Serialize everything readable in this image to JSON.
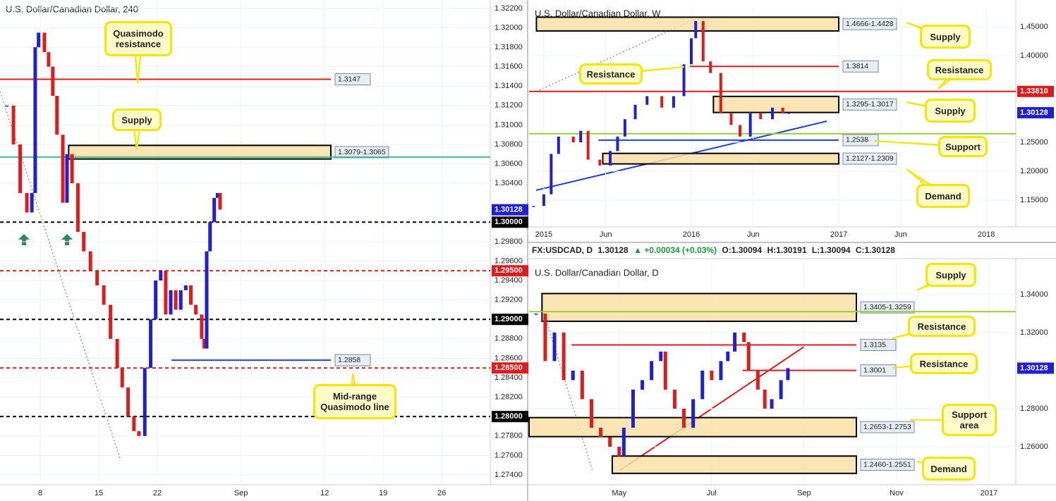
{
  "chart_data": [
    {
      "type": "line",
      "title": "U.S. Dollar/Canadian Dollar, 240",
      "x": [
        4.0,
        4.8,
        5.6,
        6.4,
        7.0,
        7.4,
        7.8,
        8.5,
        9.0,
        9.5,
        10.0,
        10.7,
        11.2,
        11.8,
        12.5,
        13.2,
        14.0,
        14.8,
        15.6,
        16.4,
        17.2,
        17.8,
        18.5,
        19.2,
        19.8,
        20.5,
        21.2,
        21.8,
        22.4,
        23.0,
        23.6,
        24.2,
        24.8,
        25.4,
        26.0,
        26.6,
        27.3,
        27.6,
        27.9,
        28.3,
        28.8,
        29.2,
        29.5
      ],
      "values": [
        1.312,
        1.308,
        1.303,
        1.301,
        1.303,
        1.318,
        1.3195,
        1.3175,
        1.316,
        1.313,
        1.309,
        1.302,
        1.307,
        1.304,
        1.299,
        1.297,
        1.295,
        1.2935,
        1.2915,
        1.288,
        1.285,
        1.283,
        1.28,
        1.2785,
        1.278,
        1.285,
        1.29,
        1.294,
        1.295,
        1.2905,
        1.293,
        1.291,
        1.293,
        1.2935,
        1.2915,
        1.2905,
        1.288,
        1.287,
        1.297,
        1.3,
        1.3025,
        1.303,
        1.3013
      ],
      "up_color": "#1f1fd6",
      "down_color": "#e01b1b",
      "grid": true,
      "xlim": [
        3.19,
        61.8
      ],
      "ylim": [
        1.27298,
        1.32286
      ],
      "xticks": [
        8,
        15,
        22,
        {
          "value": 32,
          "label": "Sep"
        },
        {
          "value": 42,
          "label": "12"
        },
        {
          "value": 49,
          "label": "19"
        },
        {
          "value": 56,
          "label": "26"
        }
      ],
      "yticks": [
        {
          "value": 1.322,
          "label": "1.32200"
        },
        {
          "value": 1.32,
          "label": "1.32000"
        },
        {
          "value": 1.318,
          "label": "1.31800"
        },
        {
          "value": 1.316,
          "label": "1.31600"
        },
        {
          "value": 1.314,
          "label": "1.31400"
        },
        {
          "value": 1.312,
          "label": "1.31200"
        },
        {
          "value": 1.31,
          "label": "1.31000"
        },
        {
          "value": 1.308,
          "label": "1.30800"
        },
        {
          "value": 1.306,
          "label": "1.30600"
        },
        {
          "value": 1.304,
          "label": "1.30400"
        },
        {
          "value": 1.298,
          "label": "1.29800"
        },
        {
          "value": 1.296,
          "label": "1.29600"
        },
        {
          "value": 1.294,
          "label": "1.29400"
        },
        {
          "value": 1.292,
          "label": "1.29200"
        },
        {
          "value": 1.288,
          "label": "1.28800"
        },
        {
          "value": 1.286,
          "label": "1.28600"
        },
        {
          "value": 1.284,
          "label": "1.28400"
        },
        {
          "value": 1.282,
          "label": "1.28200"
        },
        {
          "value": 1.278,
          "label": "1.27800"
        },
        {
          "value": 1.276,
          "label": "1.27600"
        },
        {
          "value": 1.274,
          "label": "1.27400"
        }
      ],
      "last_price": {
        "value": 1.30128,
        "label": "1.30128",
        "color": "#1f1fd6"
      },
      "lines": [
        {
          "value": 1.3,
          "label": "1.30000",
          "color": "#000000",
          "style": "dashed",
          "tag": "axis"
        },
        {
          "value": 1.295,
          "label": "1.29500",
          "color": "#e01b1b",
          "style": "dashed",
          "tag": "axis"
        },
        {
          "value": 1.29,
          "label": "1.29000",
          "color": "#000000",
          "style": "dashed",
          "tag": "axis"
        },
        {
          "value": 1.285,
          "label": "1.28500",
          "color": "#e01b1b",
          "style": "dashed",
          "tag": "axis"
        },
        {
          "value": 1.28,
          "label": "1.28000",
          "color": "#000000",
          "style": "dashed",
          "tag": "axis"
        },
        {
          "value": 1.3067,
          "color": "#3cc08f",
          "style": "solid"
        },
        {
          "value": 1.3147,
          "label": "1.3147",
          "color": "#e01b1b",
          "style": "solid",
          "tag": "box"
        },
        {
          "value": 1.2858,
          "label": "1.2858",
          "color": "#1f3fd6",
          "style": "solid",
          "tag": "box",
          "from": 23.7
        }
      ],
      "zones": [
        {
          "range": [
            1.3065,
            1.3079
          ],
          "label": "1.3079-1.3065",
          "from": 11.4
        }
      ],
      "callouts": [
        "Quasimodo resistance",
        "Supply",
        "Mid-range Quasimodo line"
      ]
    },
    {
      "type": "line",
      "title": "U.S. Dollar/Canadian Dollar, W",
      "x": [
        2014.93,
        2015.0,
        2015.05,
        2015.1,
        2015.2,
        2015.25,
        2015.3,
        2015.38,
        2015.45,
        2015.5,
        2015.55,
        2015.62,
        2015.7,
        2015.8,
        2015.88,
        2015.95,
        2016.0,
        2016.03,
        2016.08,
        2016.13,
        2016.2,
        2016.27,
        2016.33,
        2016.4,
        2016.47,
        2016.55,
        2016.62,
        2016.66
      ],
      "values": [
        1.14,
        1.16,
        1.23,
        1.26,
        1.25,
        1.27,
        1.22,
        1.21,
        1.235,
        1.26,
        1.29,
        1.315,
        1.33,
        1.31,
        1.33,
        1.385,
        1.43,
        1.46,
        1.39,
        1.37,
        1.3,
        1.28,
        1.26,
        1.3,
        1.29,
        1.31,
        1.3,
        1.3013
      ],
      "up_color": "#1f1fd6",
      "down_color": "#e01b1b",
      "grid": true,
      "xlim": [
        2014.9,
        2018.2
      ],
      "ylim": [
        1.1037,
        1.4817
      ],
      "xticks": [
        2015,
        {
          "value": 2015.42,
          "label": "Jun"
        },
        2016,
        {
          "value": 2016.42,
          "label": "Jun"
        },
        2017,
        {
          "value": 2017.42,
          "label": "Jun"
        },
        2018
      ],
      "yticks": [
        {
          "value": 1.45,
          "label": "1.45000"
        },
        {
          "value": 1.4,
          "label": "1.40000"
        },
        {
          "value": 1.25,
          "label": "1.25000"
        },
        {
          "value": 1.2,
          "label": "1.20000"
        },
        {
          "value": 1.15,
          "label": "1.15000"
        }
      ],
      "last_price": {
        "value": 1.30128,
        "label": "1.30128",
        "color": "#1f1fd6"
      },
      "lines": [
        {
          "value": 1.3381,
          "label": "1.33810",
          "color": "#e01b1b",
          "style": "solid",
          "tag": "axis"
        },
        {
          "value": 1.265,
          "color": "#9acd32",
          "style": "solid"
        },
        {
          "value": 1.3814,
          "label": "1.3814",
          "color": "#e01b1b",
          "style": "solid",
          "tag": "box",
          "from": 2015.99
        },
        {
          "value": 1.2538,
          "label": "1.2538",
          "color": "#1f3fd6",
          "style": "solid",
          "tag": "box",
          "from": 2015.37
        }
      ],
      "zones": [
        {
          "range": [
            1.4428,
            1.4666
          ],
          "label": "1.4666-1.4428",
          "from": 2014.95
        },
        {
          "range": [
            1.3017,
            1.3295
          ],
          "label": "1.3295-1.3017",
          "from": 2016.15
        },
        {
          "range": [
            1.2127,
            1.2309
          ],
          "label": "1.2127-1.2309",
          "from": 2015.4
        }
      ],
      "callouts": [
        "Supply",
        "Resistance",
        "Resistance",
        "Supply",
        "Support",
        "Demand"
      ]
    },
    {
      "type": "line",
      "title": "U.S. Dollar/Canadian Dollar, D",
      "header": {
        "symbol": "FX:USDCAD, D",
        "price": "1.30128",
        "change": "▲ +0.00034 (+0.03%)",
        "open": "O:1.30094",
        "high": "H:1.30191",
        "low": "L:1.30094",
        "close": "C:1.30128"
      },
      "x": [
        3.2,
        3.4,
        3.6,
        3.8,
        4.0,
        4.2,
        4.4,
        4.6,
        4.8,
        5.0,
        5.1,
        5.3,
        5.5,
        5.7,
        5.9,
        6.0,
        6.2,
        6.4,
        6.6,
        6.8,
        7.0,
        7.2,
        7.35,
        7.5,
        7.7,
        7.8,
        8.0,
        8.15,
        8.3,
        8.5,
        8.65
      ],
      "values": [
        1.33,
        1.305,
        1.32,
        1.295,
        1.3,
        1.285,
        1.27,
        1.265,
        1.26,
        1.255,
        1.27,
        1.29,
        1.295,
        1.305,
        1.31,
        1.29,
        1.28,
        1.27,
        1.285,
        1.3,
        1.295,
        1.305,
        1.31,
        1.32,
        1.315,
        1.3,
        1.29,
        1.28,
        1.285,
        1.295,
        1.3013
      ],
      "up_color": "#1f1fd6",
      "down_color": "#e01b1b",
      "grid": true,
      "xlim": [
        3.05,
        13.58
      ],
      "ylim": [
        1.24,
        1.357
      ],
      "xticks": [
        {
          "value": 5,
          "label": "May"
        },
        {
          "value": 7,
          "label": "Jul"
        },
        {
          "value": 9,
          "label": "Sep"
        },
        {
          "value": 11,
          "label": "Nov"
        },
        {
          "value": 13,
          "label": "2017"
        }
      ],
      "yticks": [
        {
          "value": 1.34,
          "label": "1.34000"
        },
        {
          "value": 1.32,
          "label": "1.32000"
        },
        {
          "value": 1.28,
          "label": "1.28000"
        },
        {
          "value": 1.26,
          "label": "1.26000"
        }
      ],
      "last_price": {
        "value": 1.30128,
        "label": "1.30128",
        "color": "#1f1fd6"
      },
      "lines": [
        {
          "value": 1.331,
          "color": "#9acd32",
          "style": "solid"
        },
        {
          "value": 1.3135,
          "label": "1.3135",
          "color": "#e01b1b",
          "style": "solid",
          "tag": "box",
          "from": 3.97
        },
        {
          "value": 1.3001,
          "label": "1.3001",
          "color": "#e01b1b",
          "style": "solid",
          "tag": "box",
          "from": 7.67
        }
      ],
      "zones": [
        {
          "range": [
            1.3259,
            1.3405
          ],
          "label": "1.3405-1.3259",
          "from": 3.33
        },
        {
          "range": [
            1.2653,
            1.2753
          ],
          "label": "1.2653-1.2753",
          "from": 3.05
        },
        {
          "range": [
            1.246,
            1.2551
          ],
          "label": "1.2460-1.2551",
          "from": 4.85
        }
      ],
      "callouts": [
        "Supply",
        "Resistance",
        "Resistance",
        "Support area",
        "Demand"
      ]
    }
  ]
}
